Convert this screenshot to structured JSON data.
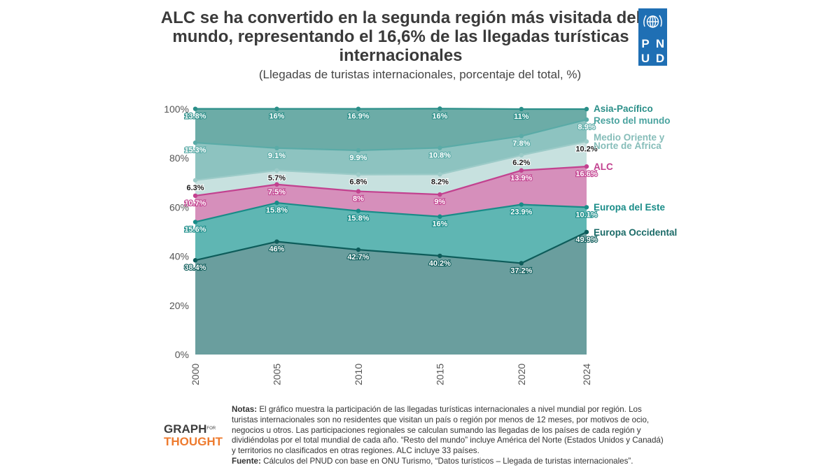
{
  "title": "ALC se ha convertido en la segunda región más visitada del mundo, representando el 16,6% de las llegadas turísticas internacionales",
  "subtitle": "(Llegadas de turistas internacionales, porcentaje del total, %)",
  "logo": {
    "letters": [
      "P",
      "N",
      "U",
      "D"
    ],
    "color": "#1f6fb4"
  },
  "notes": {
    "notes_label": "Notas:",
    "notes_text": "El gráfico muestra la participación de las llegadas turísticas internacionales a nivel mundial por región. Los turistas internacionales son no residentes que visitan un país o región por menos de 12 meses, por motivos de ocio, negocios u otros. Las participaciones regionales se calculan sumando las llegadas de los países de cada región y dividiéndolas por el total mundial de cada año. “Resto del mundo” incluye América del Norte (Estados Unidos y Canadá) y territorios no clasificados en otras regiones. ALC incluye 33 países.",
    "source_label": "Fuente:",
    "source_text": "Cálculos del PNUD con base en ONU Turismo, “Datos turísticos – Llegada de turistas internacionales”."
  },
  "brand": {
    "line1": "GRAPH",
    "for": "FOR",
    "line2": "THOUGHT"
  },
  "chart_data": {
    "type": "area",
    "stacked": true,
    "x": [
      "2000",
      "2005",
      "2010",
      "2015",
      "2020",
      "2024"
    ],
    "ylim": [
      0,
      100
    ],
    "yticks": [
      "0%",
      "20%",
      "40%",
      "60%",
      "80%",
      "100%"
    ],
    "grid": false,
    "legend_placement": "right",
    "series": [
      {
        "name": "Europa Occidental",
        "values": [
          38.4,
          46,
          42.7,
          40.2,
          37.2,
          49.9
        ],
        "labels": [
          "38.4%",
          "46%",
          "42.7%",
          "40.2%",
          "37.2%",
          "49.9%"
        ],
        "fill": "#6a9e9e",
        "line": "#0d5c5a",
        "text": "#1a6a67",
        "label_dark": false
      },
      {
        "name": "Europa del Este",
        "values": [
          15.6,
          15.8,
          15.8,
          16,
          23.9,
          10.1
        ],
        "labels": [
          "15.6%",
          "15.8%",
          "15.8%",
          "16%",
          "23.9%",
          "10.1%"
        ],
        "fill": "#5fb6b3",
        "line": "#198c88",
        "text": "#198c88",
        "label_dark": false
      },
      {
        "name": "ALC",
        "values": [
          10.7,
          7.5,
          8,
          9,
          13.9,
          16.6
        ],
        "labels": [
          "10.7%",
          "7.5%",
          "8%",
          "9%",
          "13.9%",
          "16.6%"
        ],
        "fill": "#d68fbb",
        "line": "#c2418f",
        "text": "#c2418f",
        "label_dark": false
      },
      {
        "name": "Medio Oriente y Norte de África",
        "values": [
          6.3,
          5.7,
          6.8,
          8.2,
          6.2,
          10.2
        ],
        "labels": [
          "6.3%",
          "5.7%",
          "6.8%",
          "8.2%",
          "6.2%",
          "10.2%"
        ],
        "fill": "#c7e1df",
        "line": "#9ccbc8",
        "text": "#86bdb9",
        "label_dark": true
      },
      {
        "name": "Resto del mundo",
        "values": [
          15.3,
          9.1,
          9.9,
          10.8,
          7.8,
          8.9
        ],
        "labels": [
          "15.3%",
          "9.1%",
          "9.9%",
          "10.8%",
          "7.8%",
          "8.9%"
        ],
        "fill": "#8dc3c0",
        "line": "#5aaba7",
        "text": "#4aa39f",
        "label_dark": false
      },
      {
        "name": "Asia-Pacífico",
        "values": [
          13.8,
          16,
          16.9,
          16,
          11,
          4.3
        ],
        "labels": [
          "13.8%",
          "16%",
          "16.9%",
          "16%",
          "11%",
          ""
        ],
        "fill": "#6caca7",
        "line": "#2b8f89",
        "text": "#2b8f89",
        "label_dark": false
      }
    ],
    "legend": [
      {
        "text": [
          "Asia-Pacífico"
        ],
        "color": "#2b8f89"
      },
      {
        "text": [
          "Resto del mundo"
        ],
        "color": "#4aa39f"
      },
      {
        "text": [
          "Medio Oriente y",
          "Norte de África"
        ],
        "color": "#86bdb9"
      },
      {
        "text": [
          "ALC"
        ],
        "color": "#c2418f"
      },
      {
        "text": [
          "Europa del Este"
        ],
        "color": "#198c88"
      },
      {
        "text": [
          "Europa Occidental"
        ],
        "color": "#1a6a67"
      }
    ]
  }
}
